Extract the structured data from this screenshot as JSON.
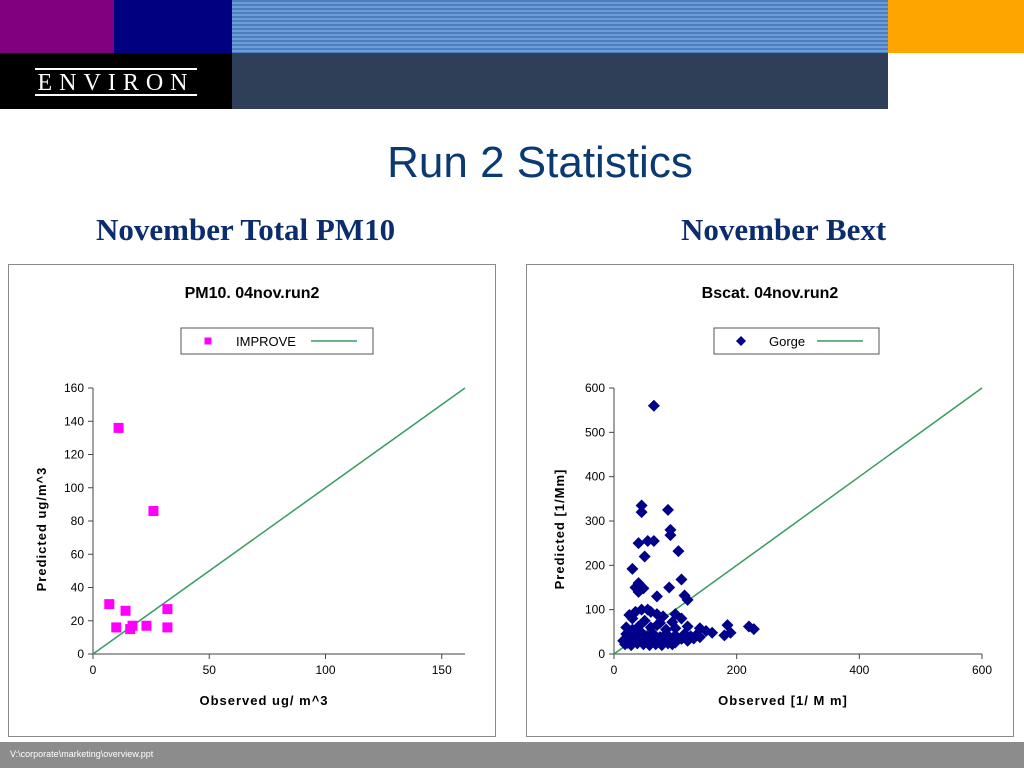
{
  "header": {
    "logo_text": "ENVIRON",
    "colors": {
      "purple": "#800080",
      "navy": "#000080",
      "stripe": "#4a7fc1",
      "orange": "#ffa500",
      "black": "#000000",
      "slate": "#2e3f57"
    }
  },
  "title": "Run 2 Statistics",
  "subtitles": {
    "left": "November Total PM10",
    "right": "November Bext"
  },
  "footer": {
    "path": "V:\\corporate\\marketing\\overview.ppt"
  },
  "chart_data": [
    {
      "type": "scatter",
      "title": "PM10.  04nov.run2",
      "xlabel": "Observed  ug/ m^3",
      "ylabel": "Predicted ug/m^3",
      "xlim": [
        0,
        160
      ],
      "ylim": [
        0,
        160
      ],
      "xticks": [
        0,
        50,
        100,
        150
      ],
      "yticks": [
        0,
        20,
        40,
        60,
        80,
        100,
        120,
        140,
        160
      ],
      "grid": false,
      "legend": "top",
      "reference_line": "1:1",
      "series": [
        {
          "name": "IMPROVE",
          "color": "#ff00ff",
          "marker": "square",
          "points": [
            [
              11,
              136
            ],
            [
              26,
              86
            ],
            [
              7,
              30
            ],
            [
              14,
              26
            ],
            [
              32,
              27
            ],
            [
              10,
              16
            ],
            [
              16,
              15
            ],
            [
              17,
              17
            ],
            [
              23,
              17
            ],
            [
              32,
              16
            ]
          ]
        }
      ],
      "line_color": "#3a9a60"
    },
    {
      "type": "scatter",
      "title": "Bscat. 04nov.run2",
      "xlabel": "Observed  [1/ M m]",
      "ylabel": "Predicted [1/Mm]",
      "xlim": [
        0,
        600
      ],
      "ylim": [
        0,
        600
      ],
      "xticks": [
        0,
        200,
        400,
        600
      ],
      "yticks": [
        0,
        100,
        200,
        300,
        400,
        500,
        600
      ],
      "grid": false,
      "legend": "top",
      "reference_line": "1:1",
      "series": [
        {
          "name": "Gorge",
          "color": "#00008b",
          "marker": "diamond",
          "points": [
            [
              65,
              560
            ],
            [
              45,
              335
            ],
            [
              88,
              325
            ],
            [
              45,
              320
            ],
            [
              92,
              280
            ],
            [
              92,
              268
            ],
            [
              55,
              255
            ],
            [
              40,
              250
            ],
            [
              65,
              255
            ],
            [
              50,
              220
            ],
            [
              105,
              232
            ],
            [
              30,
              192
            ],
            [
              40,
              160
            ],
            [
              48,
              148
            ],
            [
              110,
              168
            ],
            [
              35,
              150
            ],
            [
              90,
              150
            ],
            [
              40,
              140
            ],
            [
              70,
              130
            ],
            [
              115,
              132
            ],
            [
              120,
              122
            ],
            [
              25,
              88
            ],
            [
              35,
              95
            ],
            [
              45,
              100
            ],
            [
              55,
              100
            ],
            [
              60,
              95
            ],
            [
              70,
              90
            ],
            [
              80,
              85
            ],
            [
              100,
              90
            ],
            [
              30,
              80
            ],
            [
              50,
              75
            ],
            [
              75,
              70
            ],
            [
              95,
              72
            ],
            [
              110,
              80
            ],
            [
              20,
              60
            ],
            [
              30,
              55
            ],
            [
              40,
              62
            ],
            [
              60,
              60
            ],
            [
              70,
              65
            ],
            [
              85,
              55
            ],
            [
              100,
              58
            ],
            [
              120,
              62
            ],
            [
              140,
              58
            ],
            [
              150,
              52
            ],
            [
              185,
              65
            ],
            [
              220,
              62
            ],
            [
              228,
              56
            ],
            [
              20,
              45
            ],
            [
              25,
              38
            ],
            [
              35,
              42
            ],
            [
              45,
              48
            ],
            [
              55,
              40
            ],
            [
              65,
              44
            ],
            [
              75,
              38
            ],
            [
              85,
              46
            ],
            [
              100,
              42
            ],
            [
              115,
              45
            ],
            [
              125,
              40
            ],
            [
              135,
              44
            ],
            [
              160,
              48
            ],
            [
              190,
              48
            ],
            [
              180,
              42
            ],
            [
              15,
              30
            ],
            [
              22,
              25
            ],
            [
              30,
              32
            ],
            [
              40,
              28
            ],
            [
              50,
              30
            ],
            [
              60,
              25
            ],
            [
              70,
              32
            ],
            [
              80,
              28
            ],
            [
              90,
              30
            ],
            [
              100,
              26
            ],
            [
              110,
              34
            ],
            [
              120,
              30
            ],
            [
              130,
              35
            ],
            [
              140,
              38
            ],
            [
              18,
              22
            ],
            [
              28,
              20
            ],
            [
              38,
              24
            ],
            [
              48,
              22
            ],
            [
              58,
              20
            ],
            [
              68,
              22
            ],
            [
              78,
              20
            ],
            [
              88,
              24
            ],
            [
              95,
              22
            ]
          ]
        }
      ],
      "line_color": "#3a9a60"
    }
  ]
}
